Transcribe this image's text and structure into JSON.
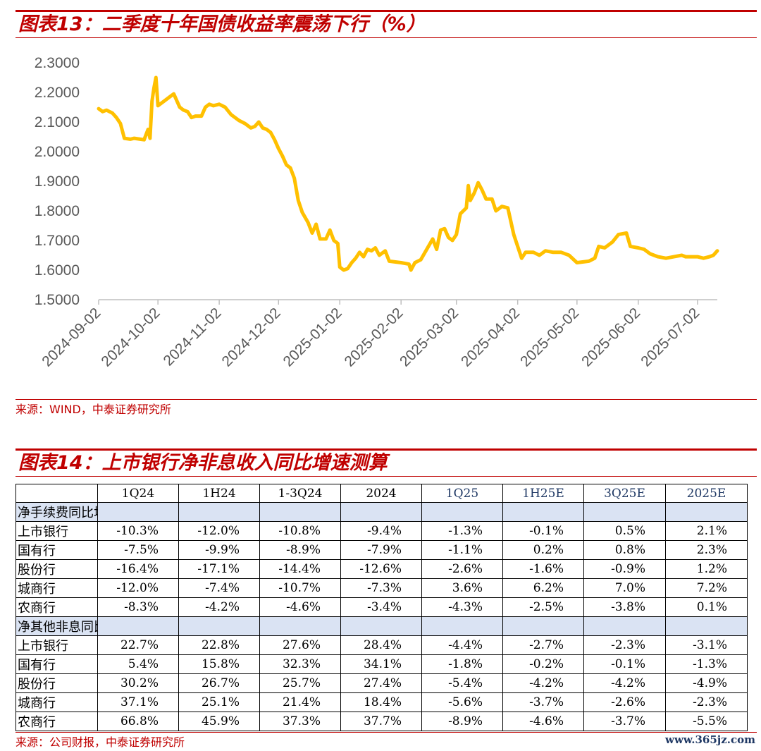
{
  "figure1": {
    "title": "图表13：二季度十年国债收益率震荡下行（%）",
    "source": "来源：WIND，中泰证券研究所"
  },
  "figure2": {
    "title": "图表14：上市银行净非息收入同比增速测算",
    "source": "来源：公司财报，中泰证券研究所"
  },
  "watermark": "www.365jz.com",
  "colors": {
    "accent": "#c00000",
    "line": "#ffc000",
    "section_fill": "#dae3f3",
    "estimate_header": "#1f3864"
  },
  "chart_data": [
    {
      "type": "line",
      "title": "",
      "xlabel": "",
      "ylabel": "",
      "ylim": [
        1.5,
        2.3
      ],
      "yticks": [
        "2.3000",
        "2.2000",
        "2.1000",
        "2.0000",
        "1.9000",
        "1.8000",
        "1.7000",
        "1.6000",
        "1.5000"
      ],
      "xticks": [
        "2024-09-02",
        "2024-10-02",
        "2024-11-02",
        "2024-12-02",
        "2025-01-02",
        "2025-02-02",
        "2025-03-02",
        "2025-04-02",
        "2025-05-02",
        "2025-06-02",
        "2025-07-02"
      ],
      "xrange": [
        "2024-09-02",
        "2025-07-12"
      ],
      "grid": false,
      "series": [
        {
          "points": [
            [
              "2024-09-02",
              2.145
            ],
            [
              "2024-09-04",
              2.135
            ],
            [
              "2024-09-06",
              2.14
            ],
            [
              "2024-09-09",
              2.13
            ],
            [
              "2024-09-11",
              2.115
            ],
            [
              "2024-09-13",
              2.095
            ],
            [
              "2024-09-15",
              2.045
            ],
            [
              "2024-09-18",
              2.042
            ],
            [
              "2024-09-20",
              2.045
            ],
            [
              "2024-09-23",
              2.042
            ],
            [
              "2024-09-25",
              2.04
            ],
            [
              "2024-09-27",
              2.075
            ],
            [
              "2024-09-28",
              2.045
            ],
            [
              "2024-09-29",
              2.17
            ],
            [
              "2024-09-30",
              2.215
            ],
            [
              "2024-10-01",
              2.25
            ],
            [
              "2024-10-02",
              2.155
            ],
            [
              "2024-10-05",
              2.17
            ],
            [
              "2024-10-08",
              2.185
            ],
            [
              "2024-10-10",
              2.195
            ],
            [
              "2024-10-13",
              2.15
            ],
            [
              "2024-10-15",
              2.14
            ],
            [
              "2024-10-17",
              2.135
            ],
            [
              "2024-10-19",
              2.115
            ],
            [
              "2024-10-21",
              2.12
            ],
            [
              "2024-10-24",
              2.12
            ],
            [
              "2024-10-26",
              2.15
            ],
            [
              "2024-10-28",
              2.16
            ],
            [
              "2024-10-30",
              2.155
            ],
            [
              "2024-11-02",
              2.16
            ],
            [
              "2024-11-05",
              2.15
            ],
            [
              "2024-11-08",
              2.125
            ],
            [
              "2024-11-12",
              2.105
            ],
            [
              "2024-11-15",
              2.095
            ],
            [
              "2024-11-18",
              2.08
            ],
            [
              "2024-11-20",
              2.085
            ],
            [
              "2024-11-22",
              2.1
            ],
            [
              "2024-11-24",
              2.08
            ],
            [
              "2024-11-26",
              2.075
            ],
            [
              "2024-11-28",
              2.065
            ],
            [
              "2024-11-30",
              2.04
            ],
            [
              "2024-12-02",
              2.01
            ],
            [
              "2024-12-04",
              1.985
            ],
            [
              "2024-12-06",
              1.955
            ],
            [
              "2024-12-08",
              1.945
            ],
            [
              "2024-12-10",
              1.91
            ],
            [
              "2024-12-12",
              1.835
            ],
            [
              "2024-12-14",
              1.795
            ],
            [
              "2024-12-17",
              1.76
            ],
            [
              "2024-12-19",
              1.725
            ],
            [
              "2024-12-21",
              1.755
            ],
            [
              "2024-12-23",
              1.705
            ],
            [
              "2024-12-26",
              1.705
            ],
            [
              "2024-12-28",
              1.735
            ],
            [
              "2024-12-30",
              1.7
            ],
            [
              "2025-01-01",
              1.69
            ],
            [
              "2025-01-02",
              1.61
            ],
            [
              "2025-01-04",
              1.6
            ],
            [
              "2025-01-06",
              1.605
            ],
            [
              "2025-01-08",
              1.625
            ],
            [
              "2025-01-10",
              1.64
            ],
            [
              "2025-01-12",
              1.66
            ],
            [
              "2025-01-14",
              1.645
            ],
            [
              "2025-01-16",
              1.67
            ],
            [
              "2025-01-18",
              1.665
            ],
            [
              "2025-01-20",
              1.675
            ],
            [
              "2025-01-22",
              1.65
            ],
            [
              "2025-01-25",
              1.665
            ],
            [
              "2025-01-27",
              1.63
            ],
            [
              "2025-02-02",
              1.625
            ],
            [
              "2025-02-06",
              1.62
            ],
            [
              "2025-02-07",
              1.6
            ],
            [
              "2025-02-09",
              1.625
            ],
            [
              "2025-02-12",
              1.635
            ],
            [
              "2025-02-15",
              1.67
            ],
            [
              "2025-02-18",
              1.705
            ],
            [
              "2025-02-20",
              1.67
            ],
            [
              "2025-02-22",
              1.735
            ],
            [
              "2025-02-24",
              1.74
            ],
            [
              "2025-02-26",
              1.71
            ],
            [
              "2025-02-28",
              1.7
            ],
            [
              "2025-03-02",
              1.72
            ],
            [
              "2025-03-04",
              1.79
            ],
            [
              "2025-03-07",
              1.81
            ],
            [
              "2025-03-08",
              1.885
            ],
            [
              "2025-03-09",
              1.835
            ],
            [
              "2025-03-11",
              1.86
            ],
            [
              "2025-03-13",
              1.895
            ],
            [
              "2025-03-15",
              1.87
            ],
            [
              "2025-03-17",
              1.84
            ],
            [
              "2025-03-20",
              1.84
            ],
            [
              "2025-03-22",
              1.8
            ],
            [
              "2025-03-25",
              1.815
            ],
            [
              "2025-03-28",
              1.81
            ],
            [
              "2025-03-31",
              1.72
            ],
            [
              "2025-04-02",
              1.68
            ],
            [
              "2025-04-04",
              1.64
            ],
            [
              "2025-04-06",
              1.66
            ],
            [
              "2025-04-10",
              1.66
            ],
            [
              "2025-04-13",
              1.65
            ],
            [
              "2025-04-16",
              1.665
            ],
            [
              "2025-04-20",
              1.66
            ],
            [
              "2025-04-24",
              1.66
            ],
            [
              "2025-04-28",
              1.65
            ],
            [
              "2025-05-02",
              1.625
            ],
            [
              "2025-05-08",
              1.63
            ],
            [
              "2025-05-11",
              1.64
            ],
            [
              "2025-05-13",
              1.68
            ],
            [
              "2025-05-16",
              1.675
            ],
            [
              "2025-05-20",
              1.695
            ],
            [
              "2025-05-23",
              1.72
            ],
            [
              "2025-05-27",
              1.725
            ],
            [
              "2025-05-29",
              1.68
            ],
            [
              "2025-06-02",
              1.675
            ],
            [
              "2025-06-05",
              1.67
            ],
            [
              "2025-06-08",
              1.655
            ],
            [
              "2025-06-12",
              1.645
            ],
            [
              "2025-06-16",
              1.64
            ],
            [
              "2025-06-20",
              1.645
            ],
            [
              "2025-06-24",
              1.65
            ],
            [
              "2025-06-26",
              1.645
            ],
            [
              "2025-06-30",
              1.645
            ],
            [
              "2025-07-02",
              1.645
            ],
            [
              "2025-07-05",
              1.64
            ],
            [
              "2025-07-08",
              1.645
            ],
            [
              "2025-07-10",
              1.65
            ],
            [
              "2025-07-12",
              1.665
            ]
          ]
        }
      ]
    },
    {
      "type": "table",
      "columns": [
        "",
        "1Q24",
        "1H24",
        "1-3Q24",
        "2024",
        "1Q25",
        "1H25E",
        "3Q25E",
        "2025E"
      ],
      "sections": [
        {
          "name": "净手续费同比增速",
          "rows": [
            {
              "label": "上市银行",
              "values": [
                "-10.3%",
                "-12.0%",
                "-10.8%",
                "-9.4%",
                "-1.3%",
                "-0.1%",
                "0.5%",
                "2.1%"
              ]
            },
            {
              "label": "国有行",
              "values": [
                "-7.5%",
                "-9.9%",
                "-8.9%",
                "-7.9%",
                "-1.1%",
                "0.2%",
                "0.8%",
                "2.3%"
              ]
            },
            {
              "label": "股份行",
              "values": [
                "-16.4%",
                "-17.1%",
                "-14.4%",
                "-12.6%",
                "-2.6%",
                "-1.6%",
                "-0.9%",
                "1.2%"
              ]
            },
            {
              "label": "城商行",
              "values": [
                "-12.0%",
                "-7.4%",
                "-10.7%",
                "-7.3%",
                "3.6%",
                "6.2%",
                "7.0%",
                "7.2%"
              ]
            },
            {
              "label": "农商行",
              "values": [
                "-8.3%",
                "-4.2%",
                "-4.6%",
                "-3.4%",
                "-4.3%",
                "-2.5%",
                "-3.8%",
                "0.1%"
              ]
            }
          ]
        },
        {
          "name": "净其他非息同比增速",
          "rows": [
            {
              "label": "上市银行",
              "values": [
                "22.7%",
                "22.8%",
                "27.6%",
                "28.4%",
                "-4.4%",
                "-2.7%",
                "-2.3%",
                "-3.1%"
              ]
            },
            {
              "label": "国有行",
              "values": [
                "5.4%",
                "15.8%",
                "32.3%",
                "34.1%",
                "-1.8%",
                "-0.2%",
                "-0.1%",
                "-1.3%"
              ]
            },
            {
              "label": "股份行",
              "values": [
                "30.2%",
                "26.7%",
                "25.7%",
                "27.4%",
                "-5.4%",
                "-4.2%",
                "-4.2%",
                "-4.9%"
              ]
            },
            {
              "label": "城商行",
              "values": [
                "37.1%",
                "25.1%",
                "21.4%",
                "18.4%",
                "-5.6%",
                "-3.7%",
                "-2.6%",
                "-2.3%"
              ]
            },
            {
              "label": "农商行",
              "values": [
                "66.8%",
                "45.9%",
                "37.3%",
                "37.7%",
                "-8.9%",
                "-4.6%",
                "-3.7%",
                "-5.5%"
              ]
            }
          ]
        }
      ]
    }
  ]
}
